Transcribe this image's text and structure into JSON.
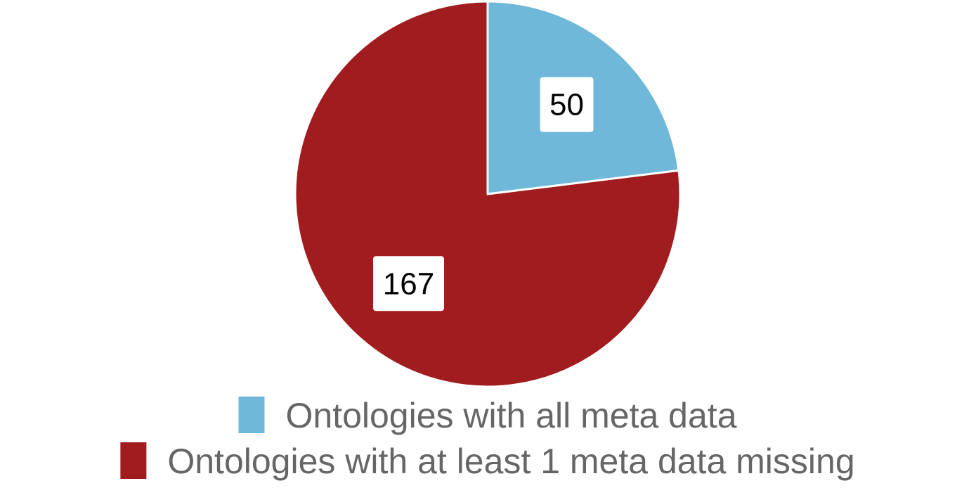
{
  "chart_data": {
    "type": "pie",
    "title": "",
    "slices": [
      {
        "label": "Ontologies with all meta data",
        "value": 50,
        "color": "#6fb8da"
      },
      {
        "label": "Ontologies with at least 1 meta data missing",
        "value": 167,
        "color": "#a11c1f"
      }
    ],
    "start_angle_deg": 0,
    "direction": "clockwise",
    "data_labels": true,
    "legend_position": "bottom"
  }
}
